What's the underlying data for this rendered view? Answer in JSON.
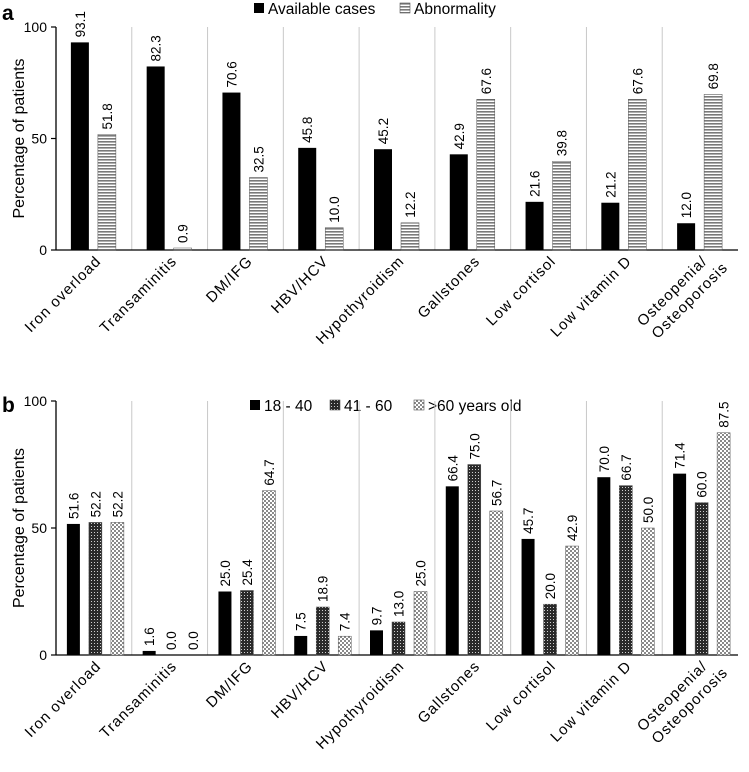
{
  "chart_data": [
    {
      "type": "bar",
      "panel": "a",
      "ylabel": "Percentage of patients",
      "ylim": [
        0,
        100
      ],
      "yticks": [
        "0",
        "50",
        "100"
      ],
      "categories": [
        "Iron overload",
        "Transaminitis",
        "DM/IFG",
        "HBV/HCV",
        "Hypothyroidism",
        "Gallstones",
        "Low cortisol",
        "Low vitamin D",
        "Osteopenia/\nOsteoporosis"
      ],
      "series": [
        {
          "name": "Available cases",
          "fill": "solid",
          "color": "#000000",
          "values": [
            93.1,
            82.3,
            70.6,
            45.8,
            45.2,
            42.9,
            21.6,
            21.2,
            12.0
          ],
          "labels": [
            "93.1",
            "82.3",
            "70.6",
            "45.8",
            "45.2",
            "42.9",
            "21.6",
            "21.2",
            "12.0"
          ]
        },
        {
          "name": "Abnormality",
          "fill": "hlines",
          "color": "#8c8c8c",
          "values": [
            51.8,
            0.9,
            32.5,
            10.0,
            12.2,
            67.6,
            39.8,
            67.6,
            69.8
          ],
          "labels": [
            "51.8",
            "0.9",
            "32.5",
            "10.0",
            "12.2",
            "67.6",
            "39.8",
            "67.6",
            "69.8"
          ]
        }
      ]
    },
    {
      "type": "bar",
      "panel": "b",
      "ylabel": "Percentage of patients",
      "ylim": [
        0,
        100
      ],
      "yticks": [
        "0",
        "50",
        "100"
      ],
      "categories": [
        "Iron overload",
        "Transaminitis",
        "DM/IFG",
        "HBV/HCV",
        "Hypothyroidism",
        "Gallstones",
        "Low cortisol",
        "Low vitamin D",
        "Osteopenia/\nOsteoporosis"
      ],
      "series": [
        {
          "name": "18 - 40",
          "fill": "solid",
          "color": "#000000",
          "values": [
            51.6,
            1.6,
            25.0,
            7.5,
            9.7,
            66.4,
            45.7,
            70.0,
            71.4
          ],
          "labels": [
            "51.6",
            "1.6",
            "25.0",
            "7.5",
            "9.7",
            "66.4",
            "45.7",
            "70.0",
            "71.4"
          ]
        },
        {
          "name": "41 - 60",
          "fill": "dense",
          "color": "#3a3a3a",
          "values": [
            52.2,
            0.0,
            25.4,
            18.9,
            13.0,
            75.0,
            20.0,
            66.7,
            60.0
          ],
          "labels": [
            "52.2",
            "0.0",
            "25.4",
            "18.9",
            "13.0",
            "75.0",
            "20.0",
            "66.7",
            "60.0"
          ]
        },
        {
          "name": ">60 years old",
          "fill": "check",
          "color": "#9a9a9a",
          "values": [
            52.2,
            0.0,
            64.7,
            7.4,
            25.0,
            56.7,
            42.9,
            50.0,
            87.5
          ],
          "labels": [
            "52.2",
            "0.0",
            "64.7",
            "7.4",
            "25.0",
            "56.7",
            "42.9",
            "50.0",
            "87.5"
          ]
        }
      ]
    }
  ]
}
